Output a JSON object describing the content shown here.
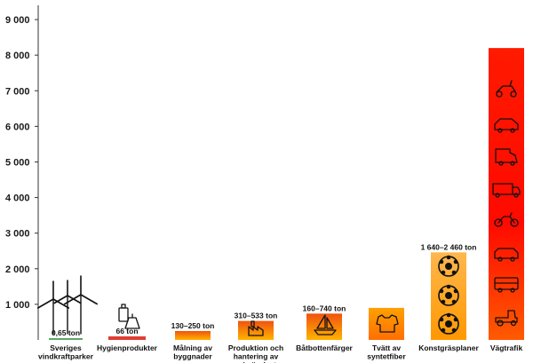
{
  "chart_data": {
    "type": "bar",
    "ylim": [
      0,
      9400
    ],
    "yticks": [
      1000,
      2000,
      3000,
      4000,
      5000,
      6000,
      7000,
      8000,
      9000
    ],
    "ytick_labels": [
      "1 000",
      "2 000",
      "3 000",
      "4 000",
      "5 000",
      "6 000",
      "7 000",
      "8 000",
      "9 000"
    ],
    "grid": false,
    "categories": [
      [
        "Sveriges",
        "vindkraftparker"
      ],
      [
        "Hygienprodukter"
      ],
      [
        "Målning av",
        "byggnader"
      ],
      [
        "Produktion och",
        "hantering av",
        "primärplast"
      ],
      [
        "Båtbottenfärger"
      ],
      [
        "Tvätt av",
        "syntetfiber"
      ],
      [
        "Konstgräsplaner"
      ],
      [
        "Vägtrafik"
      ]
    ],
    "bars": [
      {
        "low": 0.65,
        "high": 0.65,
        "value_label": "0,65 ton",
        "color": "#4caf50",
        "icon": "wind-turbines-icon"
      },
      {
        "low": 66,
        "high": 66,
        "value_label": "66 ton",
        "color": "#e53935",
        "icon": "hygiene-products-icon"
      },
      {
        "low": 130,
        "high": 250,
        "value_label": "130–250 ton",
        "color": "#f57c00",
        "icon": ""
      },
      {
        "low": 310,
        "high": 533,
        "value_label": "310–533 ton",
        "color": "#f57c00",
        "icon": "factory-icon"
      },
      {
        "low": 160,
        "high": 740,
        "value_label": "160–740 ton",
        "color": "#f4511e",
        "icon": "sailboat-icon"
      },
      {
        "low": 900,
        "high": 900,
        "value_label": "",
        "color": "#ff9800",
        "icon": "shirt-icon"
      },
      {
        "low": 1640,
        "high": 2460,
        "value_label": "1 640–2 460 ton",
        "color": "#ffa726",
        "icon": "football-icon"
      },
      {
        "low": 8200,
        "high": 8200,
        "value_label": "",
        "color": "#ff0000",
        "icon": "vehicles-icon"
      }
    ]
  }
}
